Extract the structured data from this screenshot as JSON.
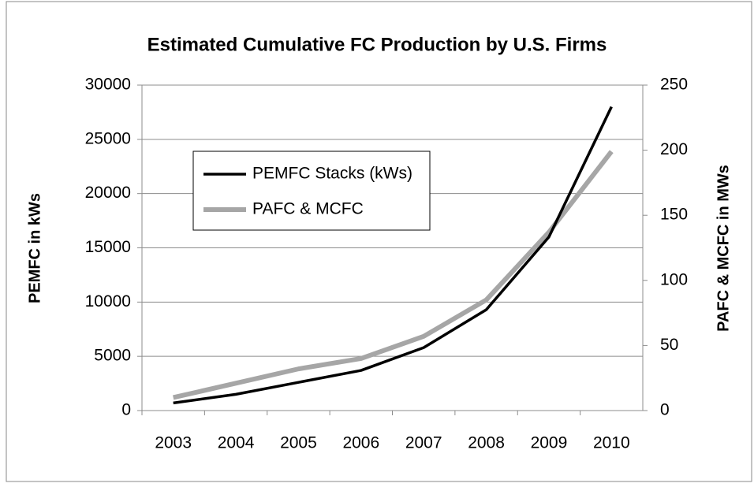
{
  "chart_data": {
    "type": "line",
    "title": "Estimated Cumulative FC Production by U.S. Firms",
    "ylabel": "PEMFC in kWs",
    "y2label": "PAFC & MCFC in MWs",
    "categories": [
      "2003",
      "2004",
      "2005",
      "2006",
      "2007",
      "2008",
      "2009",
      "2010"
    ],
    "series": [
      {
        "name": "PEMFC Stacks (kWs)",
        "color": "#000000",
        "values": [
          700,
          1500,
          2600,
          3700,
          5800,
          9300,
          16000,
          28000
        ]
      },
      {
        "name": "PAFC & MCFC",
        "color": "#a6a6a6",
        "axis": "y2",
        "values": [
          10,
          21,
          32,
          40,
          57,
          85,
          137,
          199
        ]
      }
    ],
    "ylim": [
      0,
      30000
    ],
    "yticks": [
      0,
      5000,
      10000,
      15000,
      20000,
      25000,
      30000
    ],
    "y2lim": [
      0,
      250
    ],
    "y2ticks": [
      0,
      50,
      100,
      150,
      200,
      250
    ],
    "grid": true
  }
}
